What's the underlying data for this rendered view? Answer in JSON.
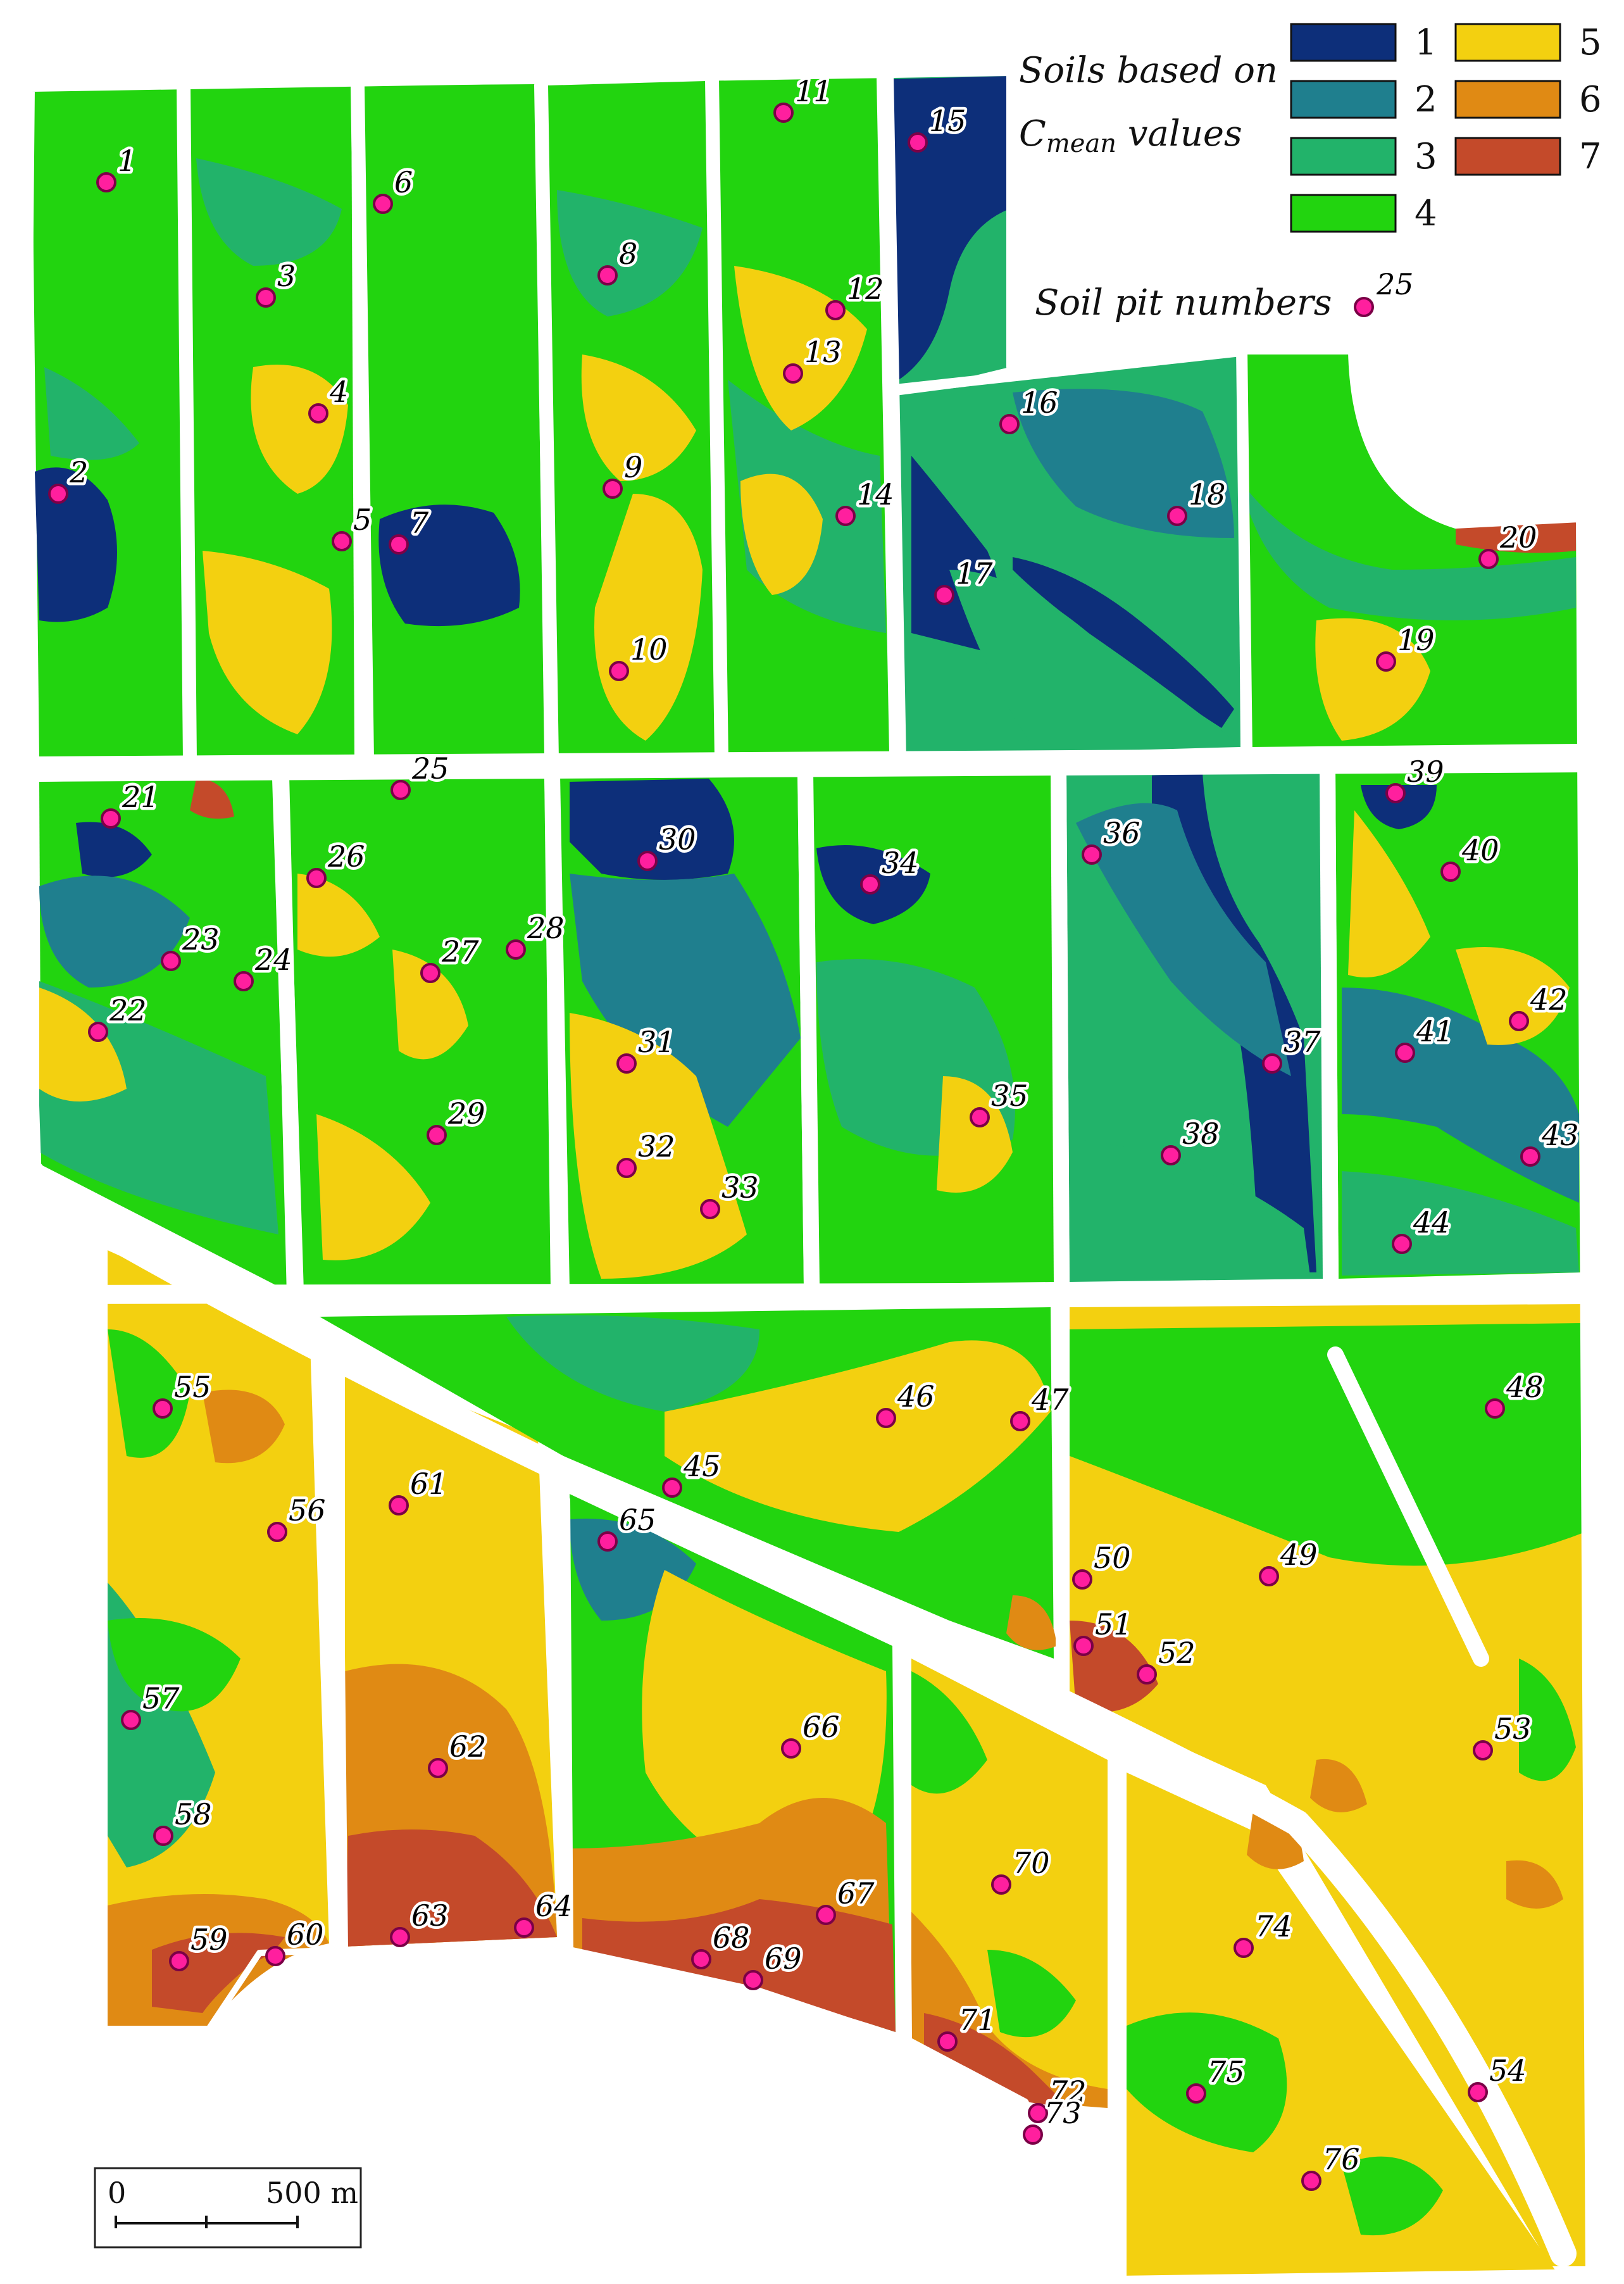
{
  "legend": {
    "title_line1": "Soils based on",
    "title_line2_prefix": "C",
    "title_line2_sub": "mean",
    "title_line2_suffix": " values",
    "classes": [
      {
        "label": "1",
        "color": "#0d2f7a"
      },
      {
        "label": "2",
        "color": "#1f7f8e"
      },
      {
        "label": "3",
        "color": "#22b36a"
      },
      {
        "label": "4",
        "color": "#22d40f"
      },
      {
        "label": "5",
        "color": "#f3d010"
      },
      {
        "label": "6",
        "color": "#e08a14"
      },
      {
        "label": "7",
        "color": "#c44a2a"
      }
    ],
    "pits_label": "Soil pit numbers",
    "pits_example": "25"
  },
  "pit_color": "#ff1f9e",
  "scale_bar": {
    "start_label": "0",
    "end_label": "500 m"
  },
  "pits": [
    {
      "id": "1"
    },
    {
      "id": "2"
    },
    {
      "id": "3"
    },
    {
      "id": "4"
    },
    {
      "id": "5"
    },
    {
      "id": "6"
    },
    {
      "id": "7"
    },
    {
      "id": "8"
    },
    {
      "id": "9"
    },
    {
      "id": "10"
    },
    {
      "id": "11"
    },
    {
      "id": "12"
    },
    {
      "id": "13"
    },
    {
      "id": "14"
    },
    {
      "id": "15"
    },
    {
      "id": "16"
    },
    {
      "id": "17"
    },
    {
      "id": "18"
    },
    {
      "id": "19"
    },
    {
      "id": "20"
    },
    {
      "id": "21"
    },
    {
      "id": "22"
    },
    {
      "id": "23"
    },
    {
      "id": "24"
    },
    {
      "id": "25"
    },
    {
      "id": "26"
    },
    {
      "id": "27"
    },
    {
      "id": "28"
    },
    {
      "id": "29"
    },
    {
      "id": "30"
    },
    {
      "id": "31"
    },
    {
      "id": "32"
    },
    {
      "id": "33"
    },
    {
      "id": "34"
    },
    {
      "id": "35"
    },
    {
      "id": "36"
    },
    {
      "id": "37"
    },
    {
      "id": "38"
    },
    {
      "id": "39"
    },
    {
      "id": "40"
    },
    {
      "id": "41"
    },
    {
      "id": "42"
    },
    {
      "id": "43"
    },
    {
      "id": "44"
    },
    {
      "id": "45"
    },
    {
      "id": "46"
    },
    {
      "id": "47"
    },
    {
      "id": "48"
    },
    {
      "id": "49"
    },
    {
      "id": "50"
    },
    {
      "id": "51"
    },
    {
      "id": "52"
    },
    {
      "id": "53"
    },
    {
      "id": "54"
    },
    {
      "id": "55"
    },
    {
      "id": "56"
    },
    {
      "id": "57"
    },
    {
      "id": "58"
    },
    {
      "id": "59"
    },
    {
      "id": "60"
    },
    {
      "id": "61"
    },
    {
      "id": "62"
    },
    {
      "id": "63"
    },
    {
      "id": "64"
    },
    {
      "id": "65"
    },
    {
      "id": "66"
    },
    {
      "id": "67"
    },
    {
      "id": "68"
    },
    {
      "id": "69"
    },
    {
      "id": "70"
    },
    {
      "id": "71"
    },
    {
      "id": "72"
    },
    {
      "id": "73"
    },
    {
      "id": "74"
    },
    {
      "id": "75"
    },
    {
      "id": "76"
    }
  ]
}
